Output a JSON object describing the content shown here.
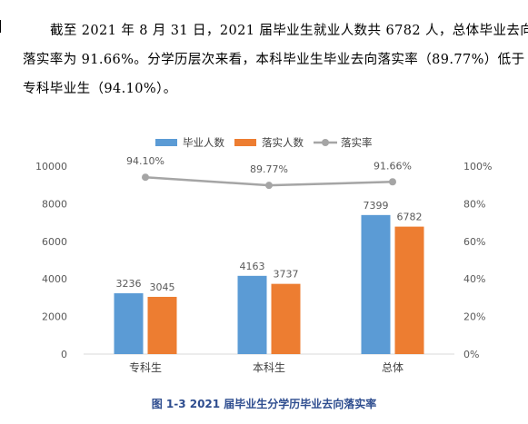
{
  "paragraph": {
    "line1": "截至 2021 年 8 月 31 日，2021 届毕业生就业人数共 6782 人，总体毕业去向",
    "line2": "落实率为 91.66%。分学历层次来看，本科毕业生毕业去向落实率（89.77%）低于",
    "line3": "专科毕业生（94.10%）。"
  },
  "caption": "图 1-3  2021 届毕业生分学历毕业去向落实率",
  "colors": {
    "bar_grads": "#5B9BD5",
    "bar_placed": "#ED7D31",
    "line_rate": "#A5A5A5",
    "axis_text": "#595959",
    "caption": "#2E4D8F"
  },
  "chart_data": {
    "type": "bar",
    "categories": [
      "专科生",
      "本科生",
      "总体"
    ],
    "series": [
      {
        "name": "毕业人数",
        "type": "bar",
        "axis": "left",
        "values": [
          3236,
          4163,
          7399
        ]
      },
      {
        "name": "落实人数",
        "type": "bar",
        "axis": "left",
        "values": [
          3045,
          3737,
          6782
        ]
      },
      {
        "name": "落实率",
        "type": "line",
        "axis": "right",
        "values": [
          94.1,
          89.77,
          91.66
        ],
        "labels": [
          "94.10%",
          "89.77%",
          "91.66%"
        ]
      }
    ],
    "ylim": [
      0,
      10000
    ],
    "yticks": [
      "0",
      "2000",
      "4000",
      "6000",
      "8000",
      "10000"
    ],
    "y2lim": [
      0,
      100
    ],
    "y2ticks": [
      "0%",
      "20%",
      "40%",
      "60%",
      "80%",
      "100%"
    ],
    "legend_position": "top-center",
    "grid": false
  }
}
